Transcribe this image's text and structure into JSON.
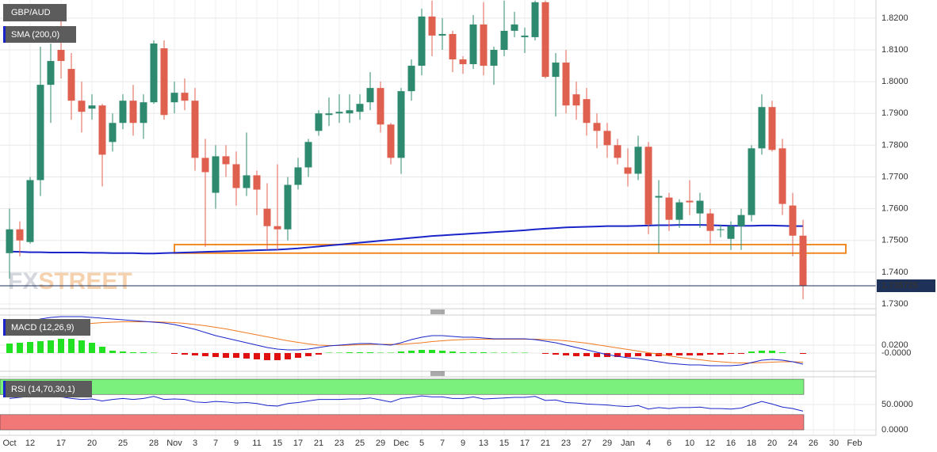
{
  "chart_data": [
    {
      "type": "candlestick",
      "watermark": [
        "FX",
        "STREET"
      ],
      "categories": [
        "Oct",
        null,
        "12",
        null,
        null,
        "17",
        null,
        null,
        "20",
        null,
        null,
        "25",
        null,
        null,
        "28",
        null,
        "Nov",
        null,
        "3",
        null,
        "7",
        null,
        "9",
        null,
        "11",
        null,
        "15",
        null,
        "17",
        null,
        "21",
        null,
        "23",
        null,
        "25",
        null,
        "29",
        null,
        "Dec",
        null,
        "5",
        null,
        "7",
        null,
        "9",
        null,
        "13",
        null,
        "15",
        null,
        "17",
        null,
        "21",
        null,
        "23",
        null,
        "27",
        null,
        "29",
        null,
        "Jan",
        null,
        "4",
        null,
        "6",
        null,
        "10",
        null,
        "12",
        null,
        "16",
        null,
        "18",
        null,
        "20",
        null,
        "24",
        null,
        "26",
        null,
        "30",
        null,
        "Feb"
      ],
      "series": [
        {
          "name": "GBP/AUD",
          "up_color": "#2e8a6e",
          "down_color": "#e0604f",
          "open": [
            1.746,
            1.7535,
            1.7495,
            1.769,
            1.799,
            1.81,
            1.804,
            1.794,
            1.7915,
            1.7925,
            1.781,
            1.787,
            1.794,
            1.787,
            1.7935,
            1.8105,
            1.7935,
            1.7965,
            1.794,
            1.776,
            1.765,
            1.7765,
            1.774,
            1.7665,
            1.7705,
            1.76,
            1.7545,
            1.7535,
            1.7675,
            1.773,
            1.7845,
            1.7895,
            1.79,
            1.79,
            1.7905,
            1.7935,
            1.798,
            1.7865,
            1.776,
            1.797,
            1.805,
            1.8205,
            1.8145,
            1.815,
            1.807,
            1.8055,
            1.818,
            1.805,
            1.81,
            1.816,
            1.814,
            1.814,
            1.825,
            1.8015,
            1.806,
            1.796,
            1.7945,
            1.787,
            1.7845,
            1.78,
            1.773,
            1.771,
            1.7795,
            1.7635,
            1.7635,
            1.7565,
            1.7625,
            1.7585,
            1.7585,
            1.7535,
            1.7505,
            1.7545,
            1.758,
            1.779,
            1.792,
            1.779,
            1.761,
            1.7515,
            null,
            null,
            null,
            null,
            null
          ],
          "high": [
            1.76,
            1.756,
            1.77,
            1.811,
            1.812,
            1.82,
            1.809,
            1.8,
            1.796,
            1.793,
            1.79,
            1.796,
            1.799,
            1.796,
            1.813,
            1.813,
            1.8,
            1.801,
            1.798,
            1.782,
            1.78,
            1.78,
            1.778,
            1.784,
            1.772,
            1.768,
            1.774,
            1.77,
            1.776,
            1.782,
            1.791,
            1.795,
            1.796,
            1.796,
            1.796,
            1.803,
            1.8,
            1.787,
            1.798,
            1.807,
            1.823,
            1.8255,
            1.82,
            1.816,
            1.808,
            1.821,
            1.825,
            1.811,
            1.8255,
            1.822,
            1.817,
            1.8255,
            1.8255,
            1.809,
            1.81,
            1.8,
            1.798,
            1.79,
            1.787,
            1.782,
            1.779,
            1.783,
            1.781,
            1.769,
            1.765,
            1.763,
            1.769,
            1.765,
            1.76,
            1.755,
            1.756,
            1.76,
            1.78,
            1.796,
            1.794,
            1.782,
            1.765,
            1.7565,
            null,
            null,
            null,
            null,
            null
          ],
          "low": [
            1.738,
            1.745,
            1.749,
            1.764,
            1.787,
            1.801,
            1.788,
            1.784,
            1.788,
            1.767,
            1.778,
            1.785,
            1.783,
            1.782,
            1.793,
            1.788,
            1.79,
            1.791,
            1.772,
            1.748,
            1.76,
            1.77,
            1.761,
            1.764,
            1.758,
            1.747,
            1.747,
            1.75,
            1.766,
            1.77,
            1.783,
            1.786,
            1.787,
            1.787,
            1.788,
            1.791,
            1.784,
            1.774,
            1.771,
            1.794,
            1.802,
            1.808,
            1.81,
            1.803,
            1.8025,
            1.804,
            1.802,
            1.799,
            1.808,
            1.814,
            1.809,
            1.813,
            1.801,
            1.789,
            1.79,
            1.788,
            1.783,
            1.779,
            1.776,
            1.774,
            1.767,
            1.769,
            1.752,
            1.746,
            1.753,
            1.754,
            1.758,
            1.754,
            1.749,
            1.751,
            1.747,
            1.747,
            1.756,
            1.777,
            1.778,
            1.758,
            1.745,
            1.7315,
            null,
            null,
            null,
            null,
            null
          ],
          "close": [
            1.7535,
            1.75,
            1.769,
            1.799,
            1.8065,
            1.8065,
            1.794,
            1.7905,
            1.7925,
            1.777,
            1.787,
            1.794,
            1.787,
            1.7935,
            1.812,
            1.7895,
            1.7965,
            1.794,
            1.776,
            1.7715,
            1.7765,
            1.774,
            1.7665,
            1.7705,
            1.766,
            1.7545,
            1.7535,
            1.7675,
            1.773,
            1.781,
            1.79,
            1.79,
            1.7905,
            1.791,
            1.793,
            1.798,
            1.7865,
            1.776,
            1.797,
            1.805,
            1.8205,
            1.8145,
            1.815,
            1.807,
            1.8055,
            1.818,
            1.805,
            1.81,
            1.816,
            1.818,
            1.8145,
            1.825,
            1.8015,
            1.806,
            1.7925,
            1.7925,
            1.787,
            1.7845,
            1.78,
            1.776,
            1.771,
            1.7795,
            1.755,
            1.764,
            1.7565,
            1.762,
            1.762,
            1.7625,
            1.753,
            1.7535,
            1.7545,
            1.758,
            1.779,
            1.792,
            1.7785,
            1.7615,
            1.7515,
            1.735725,
            null,
            null,
            null,
            null,
            null
          ]
        },
        {
          "name": "SMA (200,0)",
          "color": "#1a25c9",
          "values": [
            1.7465,
            1.7464,
            1.7463,
            1.7463,
            1.7462,
            1.7462,
            1.7462,
            1.7462,
            1.7461,
            1.7461,
            1.746,
            1.746,
            1.746,
            1.7459,
            1.7459,
            1.746,
            1.7461,
            1.7462,
            1.7463,
            1.7464,
            1.7465,
            1.7466,
            1.7467,
            1.7468,
            1.7469,
            1.747,
            1.7471,
            1.7473,
            1.7475,
            1.7478,
            1.7481,
            1.7484,
            1.7487,
            1.749,
            1.7493,
            1.7496,
            1.7499,
            1.7502,
            1.7505,
            1.7508,
            1.7511,
            1.7514,
            1.7516,
            1.7518,
            1.752,
            1.7522,
            1.7524,
            1.7526,
            1.7528,
            1.753,
            1.7532,
            1.7535,
            1.7537,
            1.7539,
            1.7541,
            1.7542,
            1.7543,
            1.7544,
            1.7545,
            1.7545,
            1.7545,
            1.7546,
            1.7547,
            1.7548,
            1.7548,
            1.7549,
            1.7549,
            1.7549,
            1.7548,
            1.7547,
            1.7546,
            1.7546,
            1.7546,
            1.7547,
            1.7547,
            1.7546,
            1.7545,
            1.7545,
            null,
            null,
            null,
            null,
            null
          ]
        }
      ],
      "ylim": [
        1.729,
        1.8257
      ],
      "yticks": [
        {
          "value": 1.73,
          "label": "1.7300"
        },
        {
          "value": 1.74,
          "label": "1.7400"
        },
        {
          "value": 1.75,
          "label": "1.7500"
        },
        {
          "value": 1.76,
          "label": "1.7600"
        },
        {
          "value": 1.77,
          "label": "1.7700"
        },
        {
          "value": 1.78,
          "label": "1.7800"
        },
        {
          "value": 1.79,
          "label": "1.7900"
        },
        {
          "value": 1.8,
          "label": "1.8000"
        },
        {
          "value": 1.81,
          "label": "1.8100"
        },
        {
          "value": 1.82,
          "label": "1.8200"
        }
      ],
      "grid": true,
      "support_zone": [
        1.746,
        1.7487
      ],
      "support_color": "#f08a24",
      "price_line_color": "#1e3158"
    },
    {
      "type": "macd",
      "name": "MACD (12,26,9)",
      "histogram": {
        "up_color": "#22e022",
        "down_color": "#e01010",
        "values": [
          0.024,
          0.026,
          0.028,
          0.03,
          0.032,
          0.036,
          0.036,
          0.032,
          0.026,
          0.016,
          0.006,
          0.004,
          0.002,
          0.002,
          0.001,
          0,
          -0.002,
          -0.004,
          -0.006,
          -0.008,
          -0.01,
          -0.012,
          -0.012,
          -0.014,
          -0.016,
          -0.018,
          -0.018,
          -0.016,
          -0.012,
          -0.008,
          -0.004,
          0.001,
          0.001,
          0.002,
          0.002,
          0.002,
          0.001,
          0.001,
          0.004,
          0.006,
          0.008,
          0.008,
          0.006,
          0.004,
          0.002,
          0.002,
          0.002,
          0.001,
          0.001,
          0.001,
          0.001,
          0,
          -0.002,
          -0.004,
          -0.006,
          -0.008,
          -0.008,
          -0.01,
          -0.01,
          -0.01,
          -0.01,
          -0.008,
          -0.008,
          -0.008,
          -0.006,
          -0.006,
          -0.006,
          -0.006,
          -0.004,
          -0.004,
          -0.002,
          -0.002,
          0.004,
          0.006,
          0.006,
          0.002,
          0,
          -0.002,
          null,
          null,
          null,
          null,
          null
        ]
      },
      "macd": {
        "color": "#1a25c9",
        "values": [
          0.068,
          0.074,
          0.08,
          0.086,
          0.09,
          0.092,
          0.092,
          0.092,
          0.09,
          0.088,
          0.086,
          0.084,
          0.082,
          0.08,
          0.078,
          0.076,
          0.072,
          0.066,
          0.06,
          0.052,
          0.044,
          0.038,
          0.032,
          0.026,
          0.02,
          0.014,
          0.01,
          0.008,
          0.008,
          0.01,
          0.014,
          0.018,
          0.02,
          0.022,
          0.024,
          0.024,
          0.022,
          0.02,
          0.026,
          0.034,
          0.04,
          0.044,
          0.044,
          0.042,
          0.04,
          0.04,
          0.038,
          0.036,
          0.036,
          0.036,
          0.036,
          0.034,
          0.03,
          0.026,
          0.02,
          0.014,
          0.008,
          0.002,
          -0.004,
          -0.008,
          -0.012,
          -0.014,
          -0.018,
          -0.022,
          -0.026,
          -0.028,
          -0.03,
          -0.03,
          -0.032,
          -0.032,
          -0.032,
          -0.03,
          -0.024,
          -0.018,
          -0.016,
          -0.018,
          -0.022,
          -0.028,
          null,
          null,
          null,
          null,
          null
        ]
      },
      "signal": {
        "color": "#f07a20",
        "values": [
          0.052,
          0.055,
          0.058,
          0.061,
          0.064,
          0.067,
          0.07,
          0.073,
          0.075,
          0.077,
          0.078,
          0.079,
          0.079,
          0.079,
          0.079,
          0.078,
          0.077,
          0.075,
          0.072,
          0.069,
          0.065,
          0.061,
          0.056,
          0.051,
          0.046,
          0.041,
          0.036,
          0.031,
          0.027,
          0.023,
          0.02,
          0.019,
          0.019,
          0.02,
          0.021,
          0.022,
          0.022,
          0.022,
          0.022,
          0.024,
          0.026,
          0.029,
          0.031,
          0.033,
          0.034,
          0.035,
          0.035,
          0.035,
          0.035,
          0.035,
          0.035,
          0.035,
          0.034,
          0.033,
          0.031,
          0.028,
          0.025,
          0.021,
          0.017,
          0.013,
          0.009,
          0.005,
          0.001,
          -0.003,
          -0.007,
          -0.011,
          -0.014,
          -0.017,
          -0.02,
          -0.022,
          -0.024,
          -0.025,
          -0.025,
          -0.024,
          -0.023,
          -0.022,
          -0.022,
          -0.023,
          null,
          null,
          null,
          null,
          null
        ]
      },
      "ylim": [
        -0.044,
        0.096
      ],
      "yticks": [
        {
          "value": 0.02,
          "label": "0.0200"
        },
        {
          "value": 0,
          "label": "-0.0000"
        }
      ]
    },
    {
      "type": "rsi",
      "name": "RSI (14,70,30,1)",
      "color": "#1a25c9",
      "values": [
        62,
        64,
        66,
        68,
        66,
        65,
        62,
        60,
        61,
        57,
        60,
        62,
        60,
        62,
        66,
        60,
        61,
        60,
        55,
        54,
        56,
        55,
        53,
        54,
        52,
        48,
        47,
        52,
        54,
        57,
        60,
        60,
        60,
        61,
        61,
        63,
        59,
        55,
        62,
        64,
        67,
        65,
        65,
        62,
        62,
        65,
        61,
        62,
        63,
        64,
        64,
        66,
        58,
        59,
        54,
        53,
        51,
        50,
        49,
        47,
        46,
        48,
        41,
        44,
        42,
        44,
        44,
        45,
        42,
        42,
        41,
        43,
        50,
        56,
        51,
        45,
        42,
        37,
        null,
        null,
        null,
        null,
        null
      ],
      "bands": [
        {
          "range": [
            70,
            100
          ],
          "color": "#7cf07c"
        },
        {
          "range": [
            0,
            30
          ],
          "color": "#f27878"
        }
      ],
      "ylim": [
        -10.9,
        104.7
      ],
      "yticks": [
        {
          "value": 50,
          "label": "50.0000"
        },
        {
          "value": 0,
          "label": "0.0000"
        }
      ]
    }
  ]
}
